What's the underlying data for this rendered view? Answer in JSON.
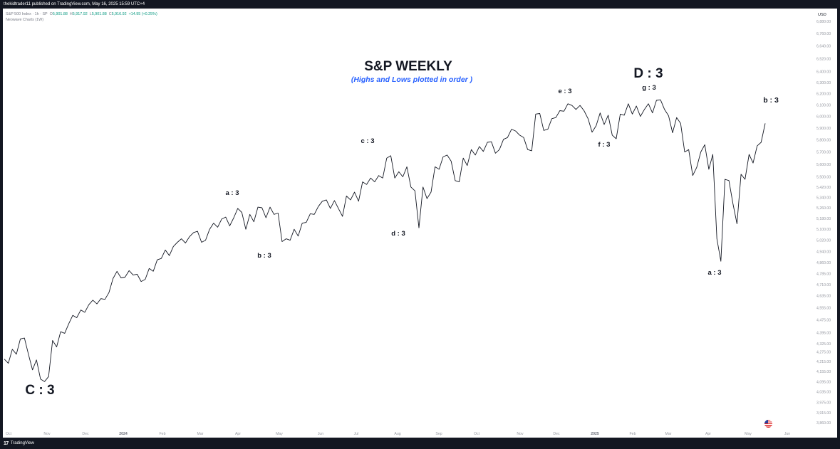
{
  "header": {
    "text": "thekidtrader11 published on TradingView.com, May 16, 2025 15:59 UTC+4"
  },
  "legend": {
    "symbol": "S&P 500 Index · 1h · SP",
    "open_label": "O",
    "open": "5,901.88",
    "high_label": "H",
    "high": "5,917.92",
    "low_label": "L",
    "low": "5,901.88",
    "close_label": "C",
    "close": "5,916.92",
    "change": "+14.95 (+0.25%)",
    "indicator": "Neowave Charts (1W)"
  },
  "currency": "USD",
  "footer": {
    "brand": "TradingView"
  },
  "colors": {
    "line": "#131722",
    "subtitle": "#2962ff",
    "up": "#089981",
    "axis_text": "#9598a1",
    "chrome": "#131722"
  },
  "chart_data": {
    "type": "line",
    "title": "S&P WEEKLY",
    "subtitle": "(Highs and Lows plotted in order )",
    "y_scale": "log",
    "ylim": [
      3860,
      6880
    ],
    "x_labels": [
      "Oct",
      "Nov",
      "Dec",
      "2024",
      "Feb",
      "Mar",
      "Apr",
      "May",
      "Jun",
      "Jul",
      "Aug",
      "Sep",
      "Oct",
      "Nov",
      "Dec",
      "2025",
      "Feb",
      "Mar",
      "Apr",
      "May",
      "Jun"
    ],
    "y_ticks": [
      "6,880.00",
      "6,760.00",
      "6,640.00",
      "6,520.00",
      "6,400.00",
      "6,300.00",
      "6,200.00",
      "6,100.00",
      "6,000.00",
      "5,900.00",
      "5,800.00",
      "5,700.00",
      "5,600.00",
      "5,500.00",
      "5,420.00",
      "5,340.00",
      "5,260.00",
      "5,180.00",
      "5,100.00",
      "5,020.00",
      "4,940.00",
      "4,860.00",
      "4,785.00",
      "4,710.00",
      "4,635.00",
      "4,555.00",
      "4,475.00",
      "4,395.00",
      "4,325.00",
      "4,275.00",
      "4,215.00",
      "4,155.00",
      "4,095.00",
      "4,035.00",
      "3,975.00",
      "3,915.00",
      "3,860.00"
    ],
    "series": [
      {
        "values": [
          4230,
          4205,
          4290,
          4260,
          4355,
          4360,
          4260,
          4165,
          4225,
          4110,
          4095,
          4125,
          4345,
          4305,
          4400,
          4390,
          4450,
          4505,
          4490,
          4540,
          4525,
          4575,
          4605,
          4580,
          4615,
          4610,
          4655,
          4750,
          4800,
          4755,
          4760,
          4805,
          4775,
          4780,
          4730,
          4745,
          4820,
          4800,
          4880,
          4890,
          4950,
          4910,
          4975,
          5005,
          5030,
          5000,
          5045,
          5075,
          5085,
          5005,
          5020,
          5100,
          5145,
          5115,
          5175,
          5190,
          5125,
          5185,
          5255,
          5225,
          5100,
          5210,
          5155,
          5265,
          5260,
          5185,
          5265,
          5210,
          5220,
          5010,
          5030,
          5020,
          5100,
          5050,
          5145,
          5150,
          5215,
          5210,
          5270,
          5310,
          5320,
          5255,
          5315,
          5255,
          5195,
          5350,
          5320,
          5380,
          5310,
          5460,
          5440,
          5490,
          5460,
          5510,
          5490,
          5650,
          5670,
          5490,
          5540,
          5500,
          5580,
          5420,
          5390,
          5110,
          5420,
          5330,
          5380,
          5580,
          5560,
          5660,
          5675,
          5625,
          5470,
          5460,
          5650,
          5590,
          5720,
          5675,
          5745,
          5705,
          5780,
          5785,
          5690,
          5720,
          5805,
          5820,
          5890,
          5875,
          5840,
          5820,
          5720,
          5710,
          6020,
          6025,
          5880,
          5890,
          5980,
          5990,
          6050,
          6045,
          6110,
          6095,
          6060,
          6095,
          6050,
          5980,
          5865,
          5920,
          6030,
          5930,
          6010,
          5840,
          5810,
          6020,
          6010,
          6110,
          6020,
          6090,
          6000,
          6060,
          6110,
          6030,
          6140,
          6145,
          6060,
          6005,
          5860,
          5990,
          5940,
          5700,
          5720,
          5510,
          5575,
          5700,
          5760,
          5560,
          5680,
          5030,
          4870,
          5480,
          5470,
          5290,
          5140,
          5520,
          5480,
          5680,
          5610,
          5750,
          5780,
          5940
        ]
      }
    ],
    "annotations": [
      "C : 3",
      "a : 3",
      "b : 3",
      "c : 3",
      "d : 3",
      "e : 3",
      "f : 3",
      "g : 3",
      "D : 3",
      "a : 3",
      "b : 3"
    ]
  }
}
